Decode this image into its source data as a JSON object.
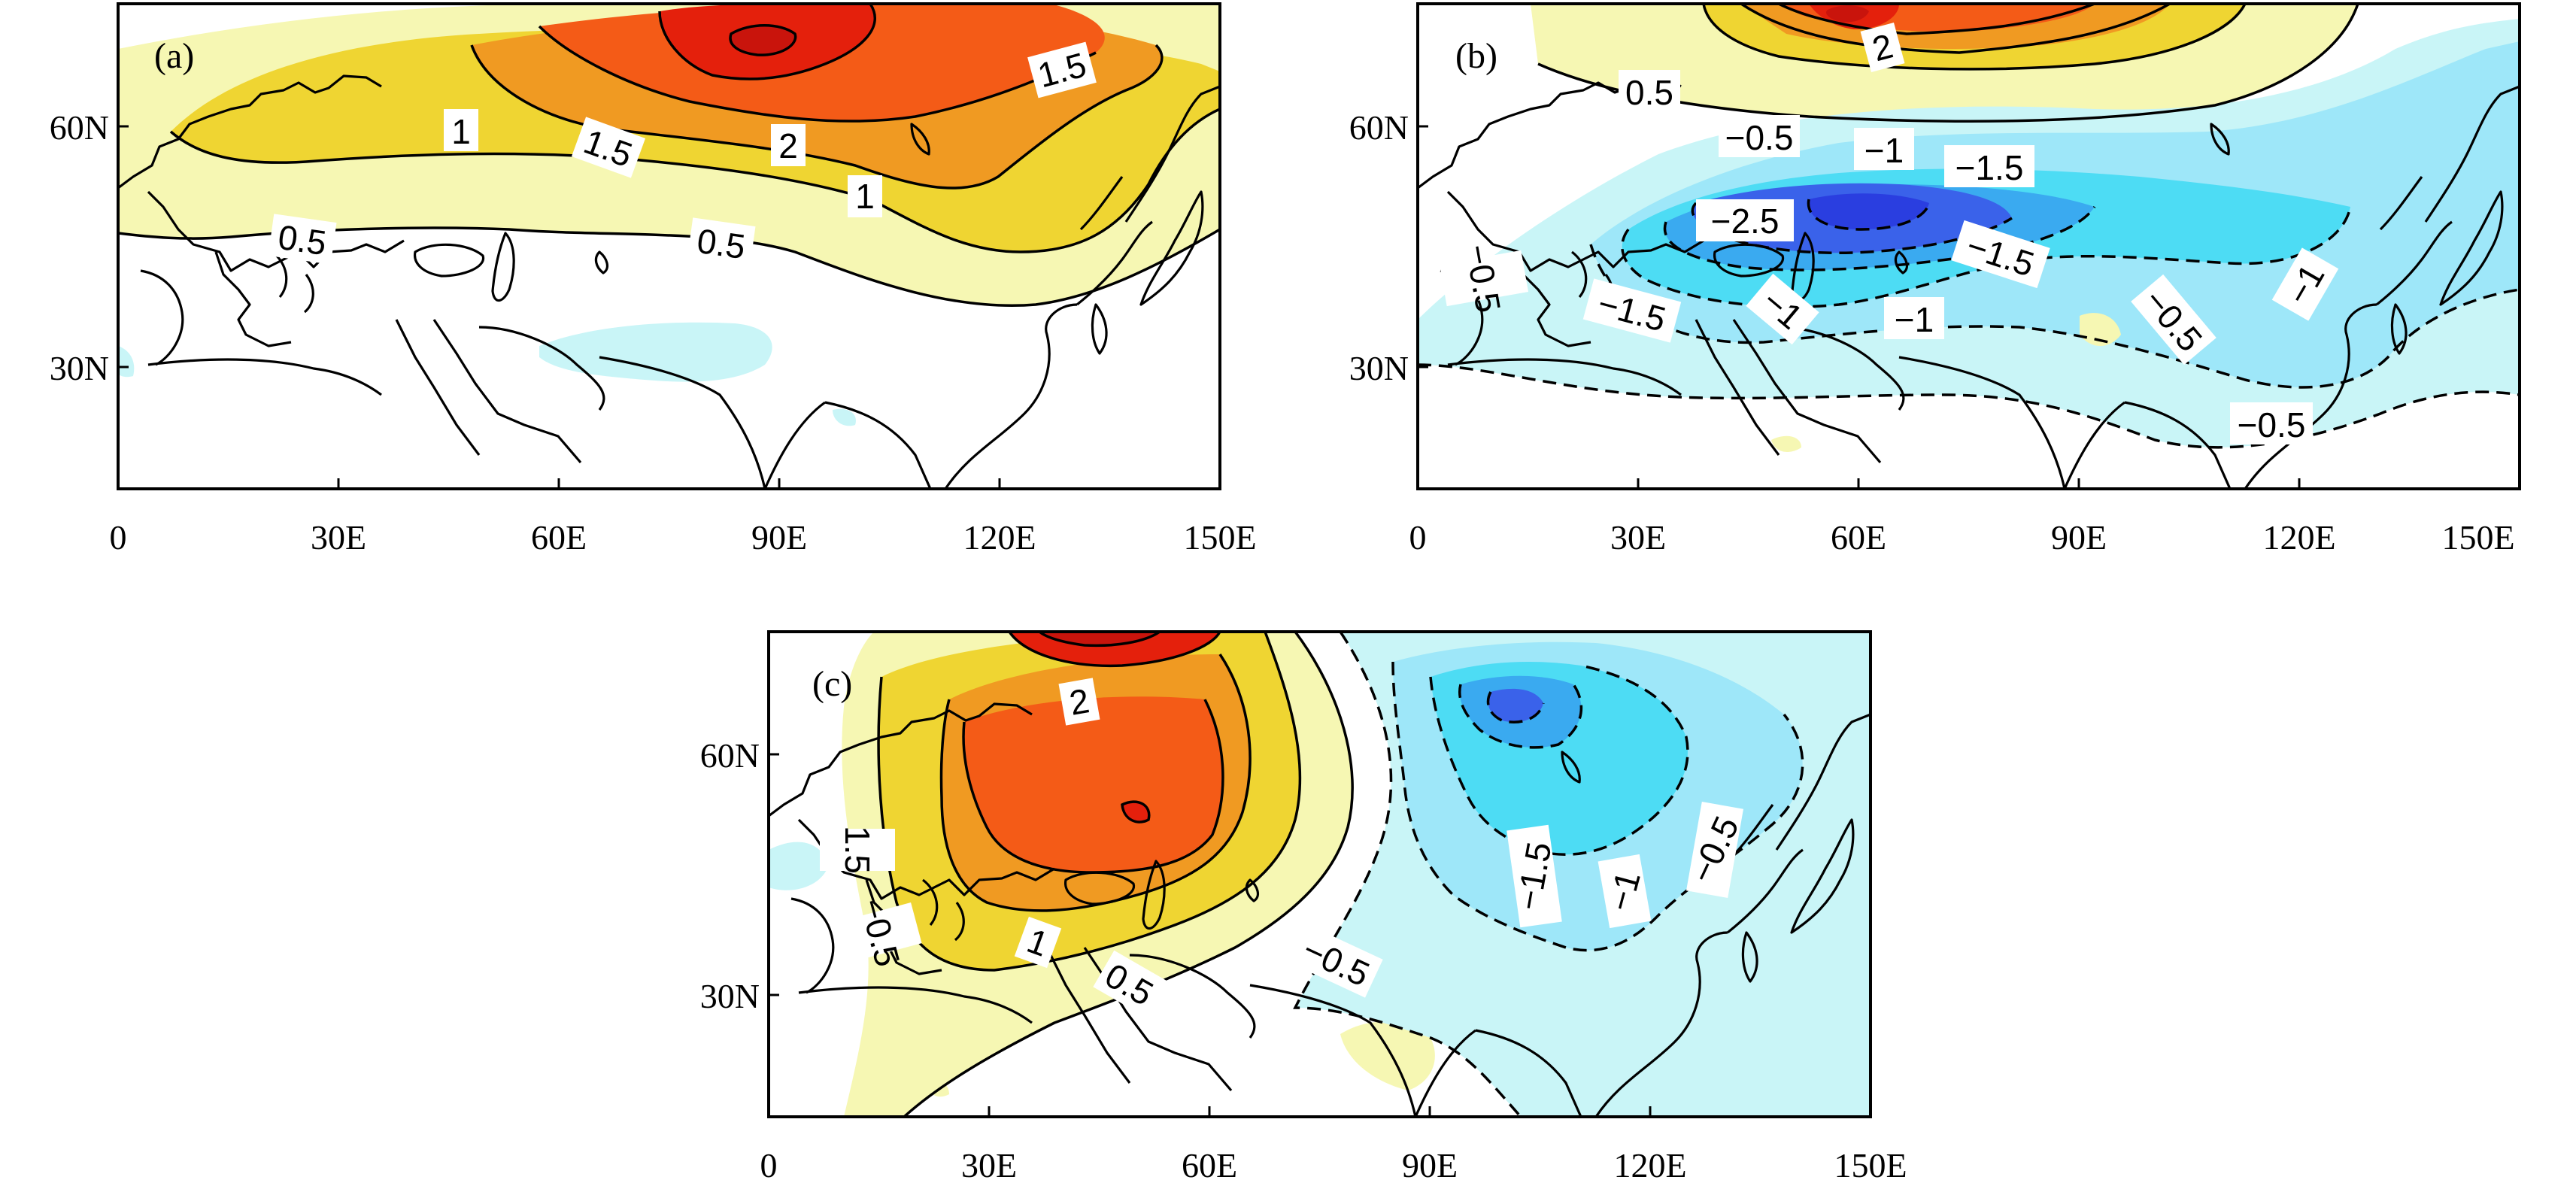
{
  "figure": {
    "axes": {
      "x_ticks": [
        "0",
        "30E",
        "60E",
        "90E",
        "120E",
        "150E"
      ],
      "y_ticks": [
        "30N",
        "60N"
      ]
    },
    "levels": {
      "colors": {
        "-3": "#2a3ee0",
        "-2.5": "#3a62ea",
        "-2": "#3aaaf0",
        "-1.5": "#4ddcf4",
        "-1": "#9ee7f9",
        "-0.5": "#c9f5f7",
        "0.5": "#f6f7b3",
        "1": "#efd532",
        "1.5": "#f09a22",
        "2": "#f45b17",
        "2.5": "#e4200c",
        "3": "#c9140c"
      }
    },
    "panels": [
      {
        "id": "a",
        "label": "(a)",
        "contour_labels": [
          "1.5",
          "1",
          "1.5",
          "2",
          "1",
          "0.5",
          "0.5"
        ]
      },
      {
        "id": "b",
        "label": "(b)",
        "contour_labels": [
          "2",
          "0.5",
          "−0.5",
          "−1",
          "−1.5",
          "−2.5",
          "−1.5",
          "−0.5",
          "−1.5",
          "−1",
          "−1",
          "−0.5",
          "−1",
          "−0.5"
        ]
      },
      {
        "id": "c",
        "label": "(c)",
        "contour_labels": [
          "2",
          "1.5",
          "−0.5",
          "1",
          "0.5",
          "−0.5",
          "−1.5",
          "−1",
          "−0.5"
        ]
      }
    ]
  }
}
